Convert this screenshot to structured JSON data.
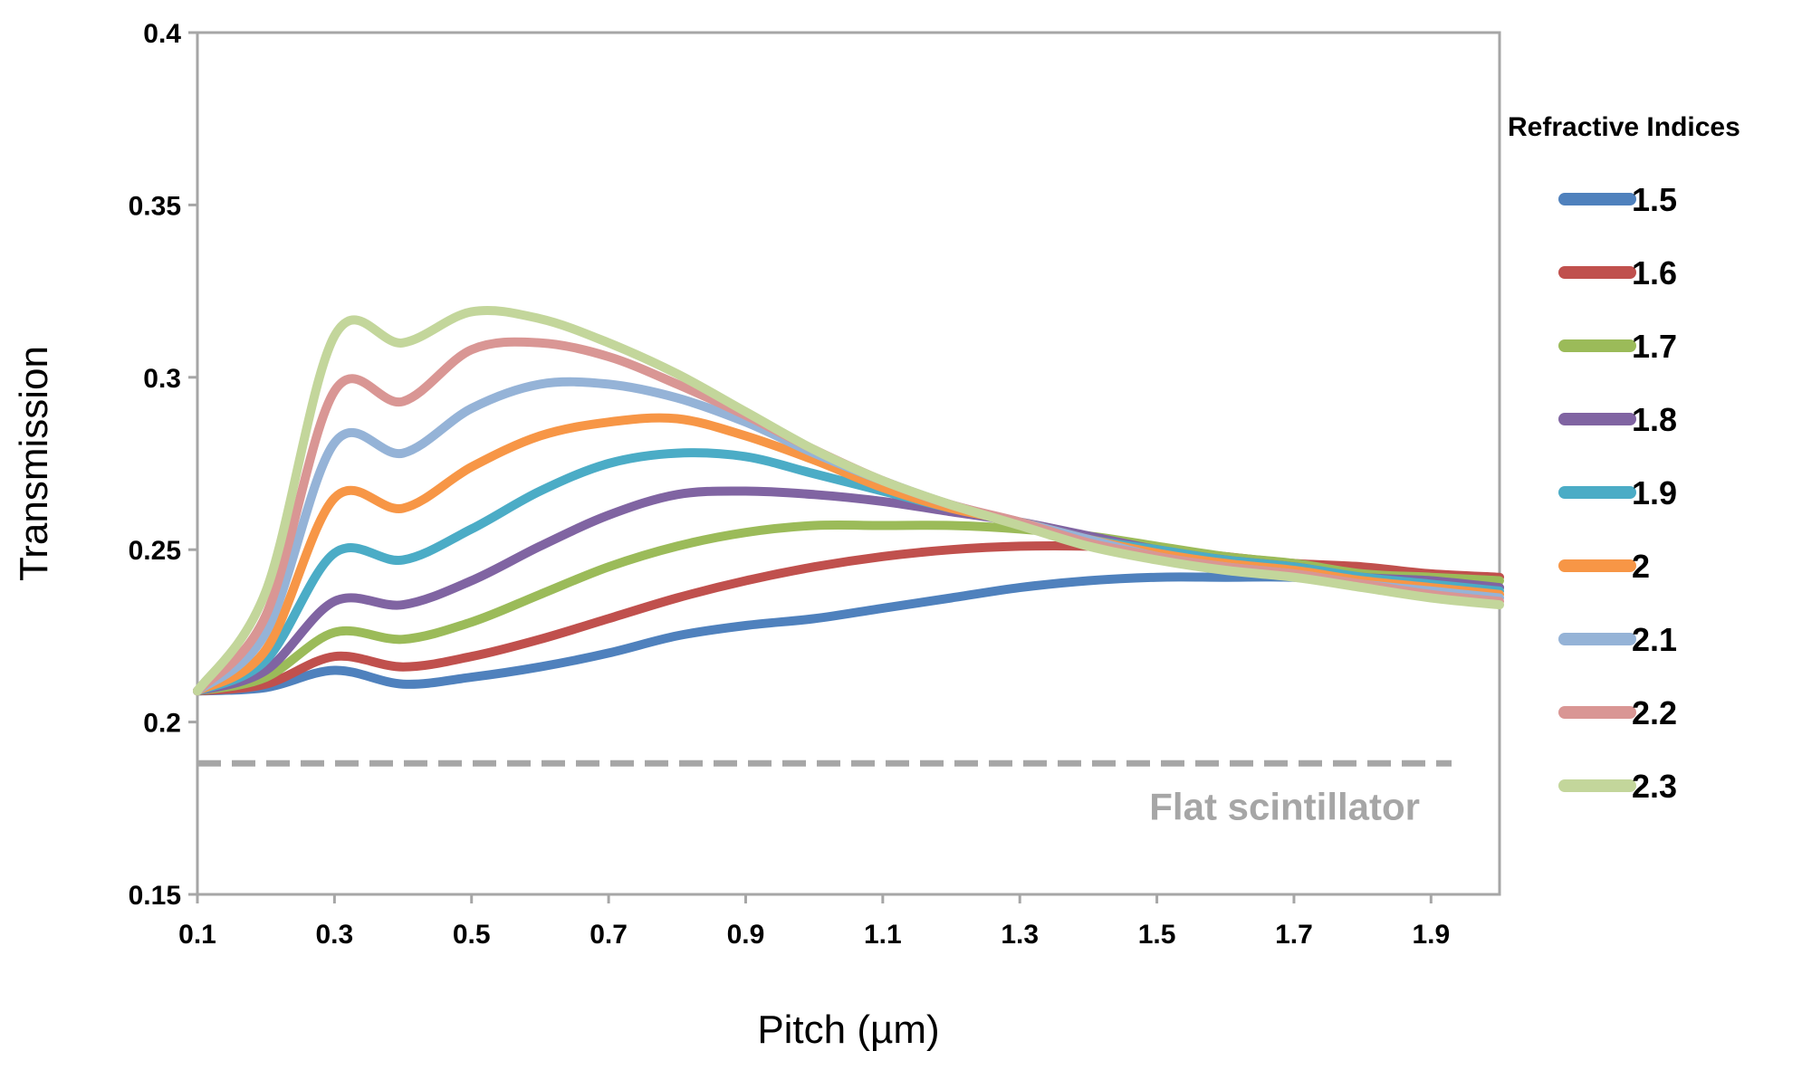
{
  "chart_data": {
    "type": "line",
    "title": "",
    "xlabel": "Pitch (µm)",
    "ylabel": "Transmission",
    "xlim": [
      0.1,
      2.0
    ],
    "ylim": [
      0.15,
      0.4
    ],
    "xticks": [
      "0.1",
      "0.3",
      "0.5",
      "0.7",
      "0.9",
      "1.1",
      "1.3",
      "1.5",
      "1.7",
      "1.9"
    ],
    "yticks": [
      "0.15",
      "0.2",
      "0.25",
      "0.3",
      "0.35",
      "0.4"
    ],
    "grid": false,
    "legend_title": "Refractive Indices",
    "legend_position": "right",
    "x": [
      0.1,
      0.2,
      0.3,
      0.4,
      0.5,
      0.6,
      0.7,
      0.8,
      0.9,
      1.0,
      1.1,
      1.2,
      1.3,
      1.4,
      1.5,
      1.6,
      1.7,
      1.8,
      1.9,
      2.0
    ],
    "series": [
      {
        "name": "1.5",
        "color": "#4f81bd",
        "values": [
          0.209,
          0.21,
          0.215,
          0.211,
          0.213,
          0.216,
          0.22,
          0.225,
          0.228,
          0.23,
          0.233,
          0.236,
          0.239,
          0.241,
          0.242,
          0.242,
          0.242,
          0.241,
          0.24,
          0.239
        ]
      },
      {
        "name": "1.6",
        "color": "#c0504d",
        "values": [
          0.209,
          0.211,
          0.219,
          0.216,
          0.219,
          0.224,
          0.23,
          0.236,
          0.241,
          0.245,
          0.248,
          0.25,
          0.251,
          0.251,
          0.25,
          0.248,
          0.246,
          0.245,
          0.243,
          0.242
        ]
      },
      {
        "name": "1.7",
        "color": "#9bbb59",
        "values": [
          0.209,
          0.213,
          0.226,
          0.224,
          0.229,
          0.237,
          0.245,
          0.251,
          0.255,
          0.257,
          0.257,
          0.257,
          0.256,
          0.254,
          0.251,
          0.248,
          0.246,
          0.243,
          0.242,
          0.241
        ]
      },
      {
        "name": "1.8",
        "color": "#8064a2",
        "values": [
          0.209,
          0.215,
          0.235,
          0.234,
          0.241,
          0.251,
          0.26,
          0.266,
          0.267,
          0.266,
          0.264,
          0.261,
          0.258,
          0.254,
          0.25,
          0.247,
          0.245,
          0.242,
          0.241,
          0.239
        ]
      },
      {
        "name": "1.9",
        "color": "#4bacc6",
        "values": [
          0.209,
          0.218,
          0.249,
          0.247,
          0.256,
          0.267,
          0.275,
          0.278,
          0.277,
          0.272,
          0.267,
          0.262,
          0.258,
          0.253,
          0.25,
          0.247,
          0.245,
          0.242,
          0.24,
          0.238
        ]
      },
      {
        "name": "2",
        "color": "#f79646",
        "values": [
          0.209,
          0.221,
          0.265,
          0.262,
          0.274,
          0.283,
          0.287,
          0.288,
          0.283,
          0.276,
          0.268,
          0.262,
          0.258,
          0.253,
          0.249,
          0.246,
          0.244,
          0.241,
          0.239,
          0.237
        ]
      },
      {
        "name": "2.1",
        "color": "#95b3d7",
        "values": [
          0.209,
          0.226,
          0.281,
          0.278,
          0.291,
          0.298,
          0.298,
          0.294,
          0.287,
          0.278,
          0.27,
          0.263,
          0.258,
          0.253,
          0.248,
          0.245,
          0.243,
          0.24,
          0.238,
          0.236
        ]
      },
      {
        "name": "2.2",
        "color": "#d99694",
        "values": [
          0.209,
          0.231,
          0.296,
          0.293,
          0.308,
          0.31,
          0.306,
          0.298,
          0.289,
          0.279,
          0.27,
          0.263,
          0.258,
          0.252,
          0.248,
          0.245,
          0.243,
          0.24,
          0.237,
          0.235
        ]
      },
      {
        "name": "2.3",
        "color": "#c3d69b",
        "values": [
          0.209,
          0.238,
          0.312,
          0.31,
          0.319,
          0.317,
          0.31,
          0.301,
          0.29,
          0.279,
          0.27,
          0.263,
          0.257,
          0.251,
          0.247,
          0.244,
          0.242,
          0.239,
          0.236,
          0.234
        ]
      }
    ],
    "reference_line": {
      "label": "Flat scintillator",
      "y": 0.188,
      "x_range": [
        0.1,
        1.93
      ],
      "style": "dashed",
      "color": "#a6a6a6"
    }
  }
}
